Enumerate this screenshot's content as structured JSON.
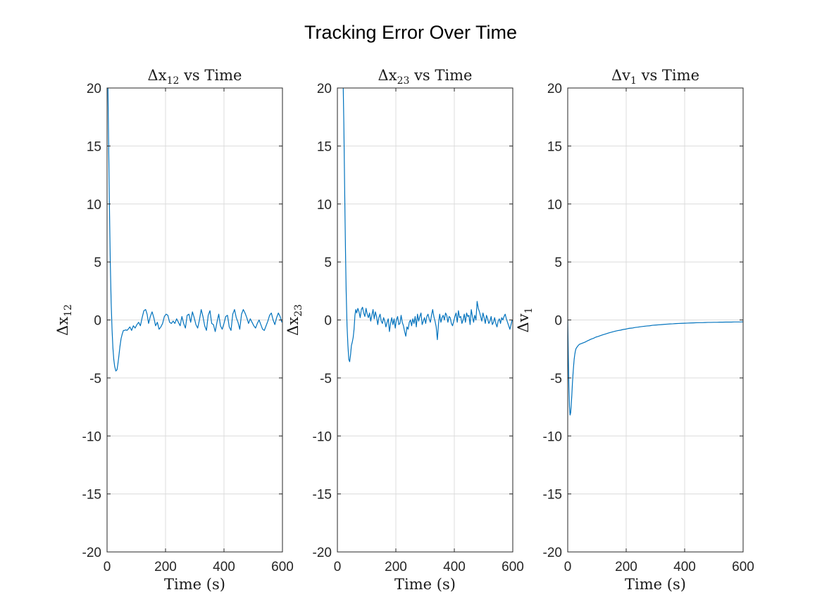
{
  "figure": {
    "title": "Tracking Error Over Time"
  },
  "colors": {
    "series": "#0072BD"
  },
  "chart_data": [
    {
      "type": "line",
      "title": {
        "main": "Δx",
        "sub": "12",
        "rest": " vs Time"
      },
      "xlabel": "Time (s)",
      "ylabel": {
        "main": "Δx",
        "sub": "12"
      },
      "xlim": [
        0,
        600
      ],
      "ylim": [
        -20,
        20
      ],
      "xticks": [
        "0",
        "200",
        "400",
        "600"
      ],
      "yticks": [
        "-20",
        "-15",
        "-10",
        "-5",
        "0",
        "5",
        "10",
        "15",
        "20"
      ],
      "grid": true,
      "series": [
        {
          "x": [
            3,
            5,
            8,
            11,
            14,
            17,
            20,
            23,
            26,
            30,
            34,
            37,
            40,
            44,
            48,
            52,
            56,
            60,
            64,
            68,
            72,
            78,
            84,
            90,
            96,
            102,
            108,
            114,
            120,
            126,
            132,
            137,
            142,
            148,
            154,
            160,
            166,
            172,
            178,
            184,
            190,
            196,
            202,
            208,
            214,
            220,
            226,
            232,
            238,
            244,
            250,
            256,
            262,
            268,
            274,
            280,
            286,
            292,
            298,
            304,
            310,
            316,
            322,
            328,
            334,
            340,
            346,
            352,
            358,
            364,
            370,
            376,
            382,
            388,
            394,
            400,
            406,
            412,
            418,
            424,
            430,
            436,
            442,
            448,
            454,
            460,
            466,
            472,
            478,
            484,
            490,
            496,
            502,
            508,
            514,
            520,
            526,
            532,
            538,
            544,
            550,
            556,
            562,
            568,
            574,
            580,
            586,
            592,
            598
          ],
          "y": [
            20,
            16,
            10,
            5,
            1.5,
            -0.8,
            -2.4,
            -3.4,
            -4.0,
            -4.4,
            -4.3,
            -3.8,
            -3.2,
            -2.3,
            -1.6,
            -1.2,
            -0.9,
            -0.9,
            -0.85,
            -0.9,
            -0.8,
            -0.6,
            -0.9,
            -0.5,
            -0.7,
            -0.4,
            -0.2,
            -0.5,
            0.2,
            0.8,
            0.9,
            0.5,
            -0.3,
            0.3,
            0.7,
            0.2,
            -0.5,
            -0.2,
            -0.8,
            -0.6,
            -0.3,
            0.3,
            0.5,
            0.4,
            -0.2,
            -0.3,
            -0.1,
            -0.3,
            0.1,
            -0.2,
            -0.5,
            0.3,
            -0.3,
            -0.7,
            0.4,
            0.5,
            -0.2,
            0.7,
            0.2,
            -0.4,
            -0.7,
            0.0,
            0.9,
            0.3,
            -0.5,
            -0.9,
            0.4,
            0.8,
            -0.3,
            -0.4,
            -1.0,
            -0.2,
            0.5,
            -0.5,
            -0.8,
            -0.3,
            0.3,
            0.4,
            -0.6,
            -0.9,
            0.5,
            0.9,
            0.2,
            -0.2,
            -0.8,
            0.5,
            0.9,
            0.6,
            0.2,
            -0.3,
            0.1,
            -0.2,
            -0.5,
            -0.7,
            -0.3,
            0.0,
            -0.4,
            -0.8,
            -0.9,
            -0.5,
            -0.1,
            0.4,
            0.6,
            0.0,
            -0.4,
            0.2,
            0.6,
            0.3,
            -0.2
          ]
        }
      ]
    },
    {
      "type": "line",
      "title": {
        "main": "Δx",
        "sub": "23",
        "rest": " vs Time"
      },
      "xlabel": "Time (s)",
      "ylabel": {
        "main": "Δx",
        "sub": "23"
      },
      "xlim": [
        0,
        600
      ],
      "ylim": [
        -20,
        20
      ],
      "xticks": [
        "0",
        "200",
        "400",
        "600"
      ],
      "yticks": [
        "-20",
        "-15",
        "-10",
        "-5",
        "0",
        "5",
        "10",
        "15",
        "20"
      ],
      "grid": true,
      "series": [
        {
          "x": [
            20,
            22,
            24,
            26,
            28,
            30,
            33,
            36,
            39,
            42,
            45,
            48,
            51,
            54,
            57,
            60,
            63,
            66,
            70,
            74,
            78,
            82,
            86,
            90,
            94,
            98,
            102,
            106,
            110,
            114,
            118,
            122,
            126,
            130,
            134,
            138,
            142,
            146,
            150,
            154,
            158,
            162,
            166,
            170,
            174,
            178,
            182,
            186,
            190,
            194,
            198,
            202,
            206,
            210,
            214,
            218,
            222,
            226,
            230,
            234,
            238,
            242,
            246,
            250,
            254,
            258,
            262,
            266,
            270,
            274,
            278,
            282,
            286,
            290,
            294,
            298,
            302,
            306,
            310,
            314,
            318,
            322,
            326,
            330,
            334,
            338,
            342,
            346,
            350,
            354,
            358,
            362,
            366,
            370,
            374,
            378,
            382,
            386,
            390,
            394,
            398,
            402,
            406,
            410,
            414,
            418,
            422,
            426,
            430,
            434,
            438,
            442,
            446,
            450,
            454,
            458,
            462,
            466,
            470,
            474,
            478,
            482,
            486,
            490,
            494,
            498,
            502,
            506,
            510,
            514,
            518,
            522,
            526,
            530,
            534,
            538,
            542,
            546,
            550,
            554,
            558,
            562,
            566,
            570,
            574,
            578,
            582,
            586,
            590,
            594,
            598
          ],
          "y": [
            20,
            17,
            13,
            9,
            5.5,
            2.5,
            -0.5,
            -2.2,
            -3.4,
            -3.6,
            -3.0,
            -2.2,
            -1.9,
            -1.5,
            -0.8,
            0.4,
            0.9,
            0.6,
            1.0,
            0.7,
            0.2,
            0.9,
            1.1,
            0.6,
            0.3,
            1.0,
            0.5,
            0.2,
            0.6,
            -0.1,
            0.4,
            0.9,
            0.1,
            0.7,
            0.3,
            -0.4,
            0.2,
            0.5,
            -0.1,
            -0.3,
            0.2,
            -0.1,
            -0.6,
            -0.2,
            0.1,
            -1.0,
            -0.3,
            0.2,
            -0.4,
            0.1,
            -0.7,
            0.0,
            0.3,
            -0.4,
            -0.3,
            0.4,
            -0.2,
            -0.5,
            -1.0,
            -1.4,
            -0.6,
            -0.8,
            -0.2,
            0.0,
            -0.5,
            0.1,
            -0.3,
            0.3,
            -0.6,
            0.5,
            -0.1,
            0.3,
            0.6,
            -0.4,
            -0.1,
            0.2,
            -0.3,
            0.3,
            0.5,
            0.1,
            -0.2,
            0.4,
            0.9,
            0.3,
            -0.1,
            -0.6,
            -1.7,
            -0.3,
            0.5,
            -0.2,
            0.2,
            0.4,
            0.0,
            0.6,
            0.4,
            -0.2,
            0.3,
            0.2,
            -0.3,
            -0.5,
            -0.1,
            0.3,
            0.6,
            -0.2,
            0.8,
            0.2,
            0.3,
            -0.3,
            0.0,
            0.5,
            -0.2,
            0.6,
            0.3,
            0.4,
            -0.4,
            0.9,
            0.3,
            -0.2,
            0.4,
            0.0,
            1.6,
            1.0,
            0.7,
            0.3,
            -0.1,
            0.6,
            0.2,
            -0.3,
            0.4,
            0.1,
            -0.3,
            -0.1,
            0.3,
            -0.4,
            -0.2,
            0.2,
            -0.3,
            -0.6,
            -0.1,
            0.1,
            -0.3,
            0.2,
            0.0,
            0.3,
            0.5,
            0.1,
            -0.2,
            -0.5,
            -0.8,
            -0.4,
            0.0
          ]
        }
      ]
    },
    {
      "type": "line",
      "title": {
        "main": "Δv",
        "sub": "1",
        "rest": " vs Time"
      },
      "xlabel": "Time (s)",
      "ylabel": {
        "main": "Δv",
        "sub": "1"
      },
      "xlim": [
        0,
        600
      ],
      "ylim": [
        -20,
        20
      ],
      "xticks": [
        "0",
        "200",
        "400",
        "600"
      ],
      "yticks": [
        "-20",
        "-15",
        "-10",
        "-5",
        "0",
        "5",
        "10",
        "15",
        "20"
      ],
      "grid": true,
      "series": [
        {
          "x": [
            0,
            2,
            4,
            6,
            8,
            10,
            12,
            14,
            16,
            18,
            20,
            22,
            24,
            26,
            28,
            30,
            33,
            36,
            40,
            45,
            50,
            55,
            60,
            66,
            72,
            80,
            88,
            96,
            104,
            112,
            120,
            130,
            140,
            150,
            160,
            170,
            180,
            190,
            200,
            210,
            220,
            230,
            240,
            250,
            260,
            270,
            280,
            290,
            300,
            310,
            320,
            330,
            340,
            350,
            360,
            370,
            380,
            390,
            400,
            410,
            420,
            430,
            440,
            450,
            460,
            470,
            480,
            490,
            500,
            510,
            520,
            530,
            540,
            550,
            560,
            570,
            580,
            590,
            600
          ],
          "y": [
            0,
            -3.0,
            -5.8,
            -7.5,
            -8.2,
            -8.0,
            -7.3,
            -6.5,
            -5.5,
            -4.7,
            -4.0,
            -3.4,
            -3.0,
            -2.7,
            -2.5,
            -2.4,
            -2.3,
            -2.2,
            -2.1,
            -2.05,
            -2.0,
            -1.95,
            -1.9,
            -1.82,
            -1.75,
            -1.65,
            -1.58,
            -1.48,
            -1.42,
            -1.35,
            -1.28,
            -1.2,
            -1.12,
            -1.05,
            -0.98,
            -0.92,
            -0.88,
            -0.82,
            -0.78,
            -0.72,
            -0.7,
            -0.65,
            -0.62,
            -0.58,
            -0.55,
            -0.52,
            -0.5,
            -0.46,
            -0.44,
            -0.42,
            -0.4,
            -0.38,
            -0.36,
            -0.34,
            -0.33,
            -0.31,
            -0.3,
            -0.29,
            -0.28,
            -0.27,
            -0.26,
            -0.25,
            -0.24,
            -0.23,
            -0.23,
            -0.22,
            -0.21,
            -0.21,
            -0.2,
            -0.2,
            -0.19,
            -0.19,
            -0.18,
            -0.18,
            -0.18,
            -0.17,
            -0.17,
            -0.17,
            -0.16
          ]
        }
      ]
    }
  ]
}
